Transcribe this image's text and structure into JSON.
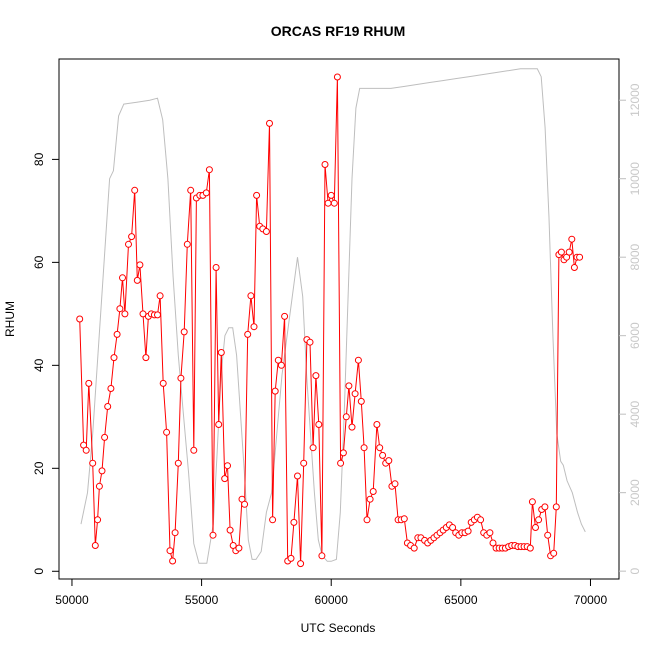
{
  "chart_data": {
    "type": "line",
    "title": "ORCAS RF19 RHUM",
    "xlabel": "UTC Seconds",
    "ylabel": "RHUM",
    "xlim": [
      49500,
      71100
    ],
    "ylim": [
      -1.5,
      99.5
    ],
    "y2lim": [
      -200,
      13050
    ],
    "xticks": [
      50000,
      55000,
      60000,
      65000,
      70000
    ],
    "yticks": [
      0,
      20,
      40,
      60,
      80
    ],
    "y2ticks": [
      0,
      2000,
      4000,
      6000,
      8000,
      10000,
      12000
    ],
    "colors": {
      "rhum": "#ff0000",
      "altitude": "#bebebe"
    },
    "series": [
      {
        "values": [
          [
            50300,
            49
          ],
          [
            50450,
            24.5
          ],
          [
            50550,
            23.5
          ],
          [
            50650,
            36.5
          ],
          [
            50800,
            21
          ],
          [
            50900,
            5
          ],
          [
            50990,
            10
          ],
          [
            51060,
            16.5
          ],
          [
            51160,
            19.5
          ],
          [
            51260,
            26
          ],
          [
            51380,
            32
          ],
          [
            51500,
            35.5
          ],
          [
            51620,
            41.5
          ],
          [
            51740,
            46
          ],
          [
            51850,
            51
          ],
          [
            51950,
            57
          ],
          [
            52040,
            50
          ],
          [
            52180,
            63.5
          ],
          [
            52300,
            65
          ],
          [
            52420,
            74
          ],
          [
            52520,
            56.5
          ],
          [
            52620,
            59.5
          ],
          [
            52740,
            50
          ],
          [
            52850,
            41.5
          ],
          [
            52950,
            49.5
          ],
          [
            53060,
            50
          ],
          [
            53180,
            49.8
          ],
          [
            53300,
            49.8
          ],
          [
            53400,
            53.5
          ],
          [
            53520,
            36.5
          ],
          [
            53650,
            27
          ],
          [
            53780,
            4
          ],
          [
            53880,
            2
          ],
          [
            53980,
            7.5
          ],
          [
            54100,
            21
          ],
          [
            54200,
            37.5
          ],
          [
            54330,
            46.5
          ],
          [
            54450,
            63.5
          ],
          [
            54580,
            74
          ],
          [
            54700,
            23.5
          ],
          [
            54800,
            72.5
          ],
          [
            54930,
            73
          ],
          [
            55050,
            73
          ],
          [
            55180,
            73.5
          ],
          [
            55300,
            78
          ],
          [
            55440,
            7
          ],
          [
            55560,
            59
          ],
          [
            55660,
            28.5
          ],
          [
            55760,
            42.5
          ],
          [
            55890,
            18
          ],
          [
            56000,
            20.5
          ],
          [
            56100,
            8
          ],
          [
            56220,
            5
          ],
          [
            56320,
            4
          ],
          [
            56440,
            4.5
          ],
          [
            56560,
            14
          ],
          [
            56660,
            13
          ],
          [
            56780,
            46
          ],
          [
            56900,
            53.5
          ],
          [
            57020,
            47.5
          ],
          [
            57120,
            73
          ],
          [
            57240,
            67
          ],
          [
            57360,
            66.5
          ],
          [
            57500,
            66
          ],
          [
            57620,
            87
          ],
          [
            57740,
            10
          ],
          [
            57840,
            35
          ],
          [
            57960,
            41
          ],
          [
            58080,
            40
          ],
          [
            58200,
            49.5
          ],
          [
            58320,
            2
          ],
          [
            58450,
            2.5
          ],
          [
            58560,
            9.5
          ],
          [
            58700,
            18.5
          ],
          [
            58820,
            1.5
          ],
          [
            58940,
            21
          ],
          [
            59060,
            45
          ],
          [
            59180,
            44.5
          ],
          [
            59300,
            24
          ],
          [
            59410,
            38
          ],
          [
            59520,
            28.5
          ],
          [
            59640,
            3
          ],
          [
            59760,
            79
          ],
          [
            59880,
            71.5
          ],
          [
            60000,
            73
          ],
          [
            60120,
            71.5
          ],
          [
            60240,
            96
          ],
          [
            60360,
            21
          ],
          [
            60470,
            23
          ],
          [
            60580,
            30
          ],
          [
            60680,
            36
          ],
          [
            60800,
            28
          ],
          [
            60920,
            34.5
          ],
          [
            61050,
            41
          ],
          [
            61160,
            33
          ],
          [
            61270,
            24
          ],
          [
            61380,
            10
          ],
          [
            61500,
            14
          ],
          [
            61620,
            15.5
          ],
          [
            61760,
            28.5
          ],
          [
            61870,
            24
          ],
          [
            61980,
            22.5
          ],
          [
            62100,
            21
          ],
          [
            62220,
            21.5
          ],
          [
            62340,
            16.5
          ],
          [
            62460,
            17
          ],
          [
            62580,
            10
          ],
          [
            62700,
            10
          ],
          [
            62820,
            10.2
          ],
          [
            62940,
            5.5
          ],
          [
            63060,
            5
          ],
          [
            63200,
            4.5
          ],
          [
            63340,
            6.5
          ],
          [
            63460,
            6.5
          ],
          [
            63600,
            6
          ],
          [
            63720,
            5.5
          ],
          [
            63840,
            6
          ],
          [
            63960,
            6.5
          ],
          [
            64080,
            7
          ],
          [
            64200,
            7.5
          ],
          [
            64320,
            8
          ],
          [
            64440,
            8.5
          ],
          [
            64560,
            9
          ],
          [
            64680,
            8.5
          ],
          [
            64800,
            7.5
          ],
          [
            64920,
            7
          ],
          [
            65040,
            7.5
          ],
          [
            65160,
            7.5
          ],
          [
            65280,
            7.8
          ],
          [
            65400,
            9.5
          ],
          [
            65520,
            10
          ],
          [
            65640,
            10.5
          ],
          [
            65760,
            10
          ],
          [
            65880,
            7.5
          ],
          [
            66000,
            7
          ],
          [
            66120,
            7.5
          ],
          [
            66240,
            5.5
          ],
          [
            66360,
            4.5
          ],
          [
            66480,
            4.5
          ],
          [
            66600,
            4.5
          ],
          [
            66720,
            4.5
          ],
          [
            66840,
            4.8
          ],
          [
            66960,
            5
          ],
          [
            67080,
            5
          ],
          [
            67200,
            4.8
          ],
          [
            67320,
            4.8
          ],
          [
            67440,
            4.8
          ],
          [
            67560,
            4.8
          ],
          [
            67680,
            4.5
          ],
          [
            67760,
            13.5
          ],
          [
            67880,
            8.5
          ],
          [
            68000,
            10
          ],
          [
            68120,
            12
          ],
          [
            68240,
            12.5
          ],
          [
            68350,
            7
          ],
          [
            68460,
            3
          ],
          [
            68580,
            3.5
          ],
          [
            68680,
            12.5
          ],
          [
            68780,
            61.5
          ],
          [
            68880,
            62
          ],
          [
            68980,
            60.5
          ],
          [
            69080,
            61
          ],
          [
            69180,
            62
          ],
          [
            69280,
            64.5
          ],
          [
            69380,
            59
          ],
          [
            69480,
            61
          ],
          [
            69580,
            61
          ]
        ]
      },
      {
        "values": [
          [
            50350,
            1200
          ],
          [
            50600,
            2000
          ],
          [
            50800,
            3500
          ],
          [
            51050,
            6000
          ],
          [
            51250,
            8000
          ],
          [
            51450,
            10000
          ],
          [
            51600,
            10200
          ],
          [
            51800,
            11600
          ],
          [
            52000,
            11900
          ],
          [
            52500,
            11950
          ],
          [
            53000,
            12000
          ],
          [
            53300,
            12050
          ],
          [
            53500,
            11500
          ],
          [
            53700,
            10000
          ],
          [
            53900,
            7500
          ],
          [
            54100,
            5500
          ],
          [
            54300,
            4000
          ],
          [
            54500,
            2500
          ],
          [
            54700,
            700
          ],
          [
            54900,
            200
          ],
          [
            55000,
            200
          ],
          [
            55200,
            200
          ],
          [
            55450,
            1200
          ],
          [
            55600,
            3000
          ],
          [
            55750,
            5000
          ],
          [
            55900,
            6000
          ],
          [
            56050,
            6200
          ],
          [
            56200,
            6200
          ],
          [
            56350,
            5500
          ],
          [
            56500,
            4000
          ],
          [
            56650,
            2500
          ],
          [
            56800,
            800
          ],
          [
            56950,
            300
          ],
          [
            57100,
            300
          ],
          [
            57300,
            500
          ],
          [
            57500,
            1500
          ],
          [
            57700,
            2000
          ],
          [
            57900,
            3500
          ],
          [
            58100,
            5000
          ],
          [
            58300,
            6000
          ],
          [
            58500,
            7000
          ],
          [
            58700,
            8000
          ],
          [
            58900,
            7000
          ],
          [
            59050,
            5000
          ],
          [
            59200,
            3500
          ],
          [
            59350,
            2000
          ],
          [
            59500,
            800
          ],
          [
            59650,
            400
          ],
          [
            59850,
            250
          ],
          [
            60000,
            250
          ],
          [
            60200,
            300
          ],
          [
            60350,
            1500
          ],
          [
            60500,
            4000
          ],
          [
            60650,
            7000
          ],
          [
            60800,
            10000
          ],
          [
            60950,
            11800
          ],
          [
            61100,
            12300
          ],
          [
            61350,
            12300
          ],
          [
            61800,
            12300
          ],
          [
            62300,
            12300
          ],
          [
            62800,
            12350
          ],
          [
            63300,
            12400
          ],
          [
            63800,
            12450
          ],
          [
            64300,
            12500
          ],
          [
            64800,
            12550
          ],
          [
            65300,
            12600
          ],
          [
            65800,
            12650
          ],
          [
            66300,
            12700
          ],
          [
            66800,
            12750
          ],
          [
            67300,
            12800
          ],
          [
            67700,
            12800
          ],
          [
            67950,
            12800
          ],
          [
            68100,
            12600
          ],
          [
            68250,
            11300
          ],
          [
            68400,
            9000
          ],
          [
            68550,
            6000
          ],
          [
            68700,
            3500
          ],
          [
            68850,
            2800
          ],
          [
            68950,
            2700
          ],
          [
            69100,
            2300
          ],
          [
            69300,
            2000
          ],
          [
            69500,
            1500
          ],
          [
            69650,
            1200
          ],
          [
            69800,
            1000
          ]
        ]
      }
    ],
    "legend": "none",
    "grid": false
  }
}
